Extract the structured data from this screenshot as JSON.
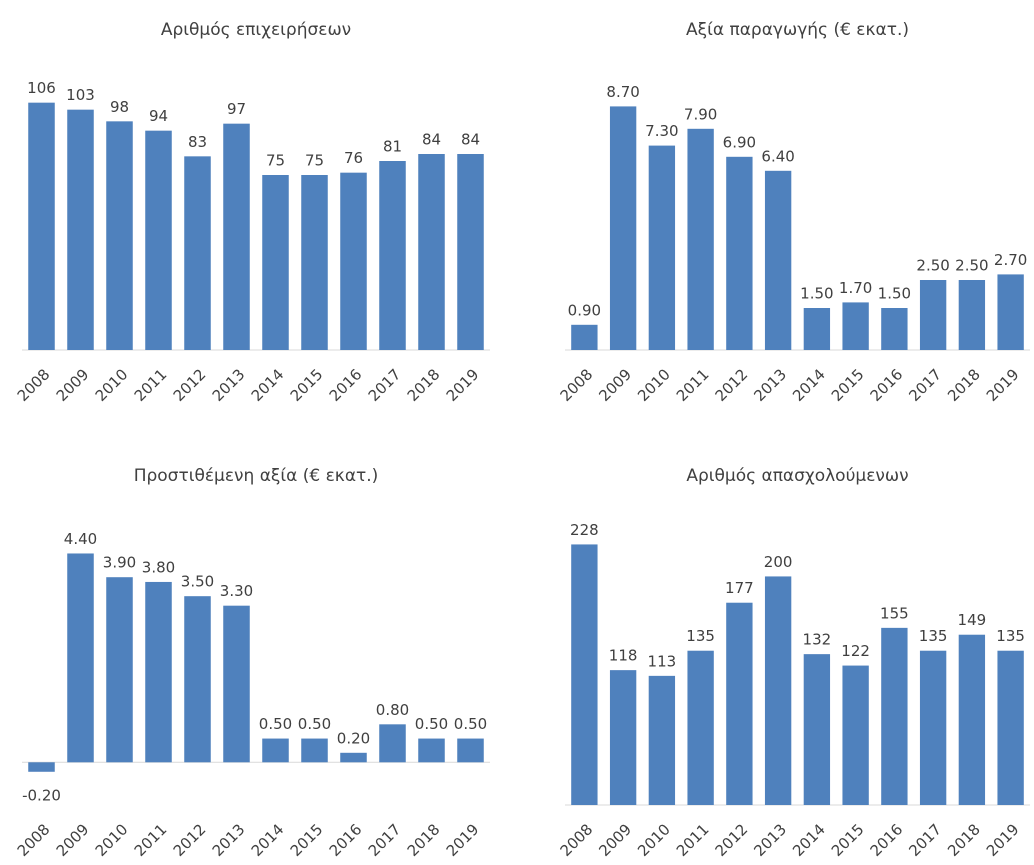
{
  "chart_data": [
    {
      "type": "bar",
      "title": "Αριθμός επιχειρήσεων",
      "color": "#4f81bd",
      "categories": [
        "2008",
        "2009",
        "2010",
        "2011",
        "2012",
        "2013",
        "2014",
        "2015",
        "2016",
        "2017",
        "2018",
        "2019"
      ],
      "values": [
        106,
        103,
        98,
        94,
        83,
        97,
        75,
        75,
        76,
        81,
        84,
        84
      ],
      "ylim": [
        0,
        120
      ]
    },
    {
      "type": "bar",
      "title": "Αξία παραγωγής (€ εκατ.)",
      "color": "#4f81bd",
      "categories": [
        "2008",
        "2009",
        "2010",
        "2011",
        "2012",
        "2013",
        "2014",
        "2015",
        "2016",
        "2017",
        "2018",
        "2019"
      ],
      "values": [
        0.9,
        8.7,
        7.3,
        7.9,
        6.9,
        6.4,
        1.5,
        1.7,
        1.5,
        2.5,
        2.5,
        2.7
      ],
      "value_labels": [
        "0.90",
        "8.70",
        "7.30",
        "7.90",
        "6.90",
        "6.40",
        "1.50",
        "1.70",
        "1.50",
        "2.50",
        "2.50",
        "2.70"
      ],
      "ylim": [
        0,
        10
      ]
    },
    {
      "type": "bar",
      "title": "Προστιθέμενη αξία (€ εκατ.)",
      "color": "#4f81bd",
      "categories": [
        "2008",
        "2009",
        "2010",
        "2011",
        "2012",
        "2013",
        "2014",
        "2015",
        "2016",
        "2017",
        "2018",
        "2019"
      ],
      "values": [
        -0.2,
        4.4,
        3.9,
        3.8,
        3.5,
        3.3,
        0.5,
        0.5,
        0.2,
        0.8,
        0.5,
        0.5
      ],
      "value_labels": [
        "-0.20",
        "4.40",
        "3.90",
        "3.80",
        "3.50",
        "3.30",
        "0.50",
        "0.50",
        "0.20",
        "0.80",
        "0.50",
        "0.50"
      ],
      "ylim": [
        -0.9,
        5
      ]
    },
    {
      "type": "bar",
      "title": "Αριθμός απασχολούμενων",
      "color": "#4f81bd",
      "categories": [
        "2008",
        "2009",
        "2010",
        "2011",
        "2012",
        "2013",
        "2014",
        "2015",
        "2016",
        "2017",
        "2018",
        "2019"
      ],
      "values": [
        228,
        118,
        113,
        135,
        177,
        200,
        132,
        122,
        155,
        135,
        149,
        135
      ],
      "ylim": [
        0,
        245
      ]
    }
  ]
}
